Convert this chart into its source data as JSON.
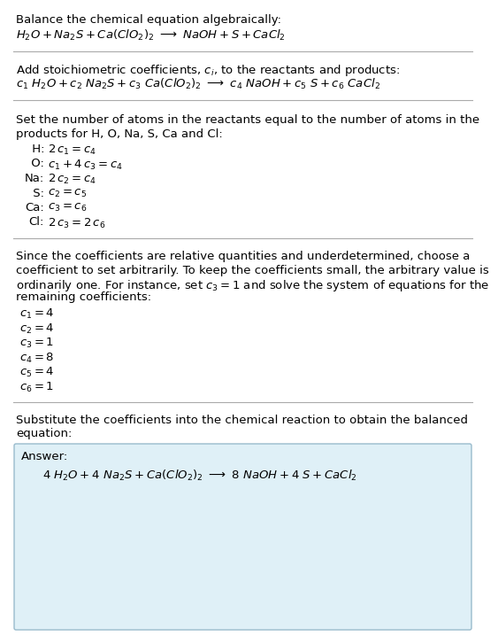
{
  "bg_color": "#ffffff",
  "text_color": "#000000",
  "section1_title": "Balance the chemical equation algebraically:",
  "section1_eq": "$H_2O + Na_2S + Ca(ClO_2)_2 \\ \\longrightarrow \\ NaOH + S + CaCl_2$",
  "section2_title": "Add stoichiometric coefficients, $c_i$, to the reactants and products:",
  "section2_eq": "$c_1\\ H_2O + c_2\\ Na_2S + c_3\\ Ca(ClO_2)_2 \\ \\longrightarrow \\ c_4\\ NaOH + c_5\\ S + c_6\\ CaCl_2$",
  "section3_title_line1": "Set the number of atoms in the reactants equal to the number of atoms in the",
  "section3_title_line2": "products for H, O, Na, S, Ca and Cl:",
  "section3_equations": [
    [
      " H:",
      "$2\\,c_1 = c_4$"
    ],
    [
      " O:",
      "$c_1 + 4\\,c_3 = c_4$"
    ],
    [
      "Na:",
      "$2\\,c_2 = c_4$"
    ],
    [
      " S:",
      "$c_2 = c_5$"
    ],
    [
      "Ca:",
      "$c_3 = c_6$"
    ],
    [
      "Cl:",
      "$2\\,c_3 = 2\\,c_6$"
    ]
  ],
  "section4_line1": "Since the coefficients are relative quantities and underdetermined, choose a",
  "section4_line2": "coefficient to set arbitrarily. To keep the coefficients small, the arbitrary value is",
  "section4_line3": "ordinarily one. For instance, set $c_3 = 1$ and solve the system of equations for the",
  "section4_line4": "remaining coefficients:",
  "section4_values": [
    "$c_1 = 4$",
    "$c_2 = 4$",
    "$c_3 = 1$",
    "$c_4 = 8$",
    "$c_5 = 4$",
    "$c_6 = 1$"
  ],
  "section5_line1": "Substitute the coefficients into the chemical reaction to obtain the balanced",
  "section5_line2": "equation:",
  "answer_label": "Answer:",
  "answer_eq": "$4\\ H_2O + 4\\ Na_2S + Ca(ClO_2)_2 \\ \\longrightarrow \\ 8\\ NaOH + 4\\ S + CaCl_2$",
  "answer_box_color": "#dff0f7",
  "answer_box_edge": "#99bbcc",
  "hline_color": "#aaaaaa",
  "font_size": 9.5,
  "font_size_eq": 9.5
}
